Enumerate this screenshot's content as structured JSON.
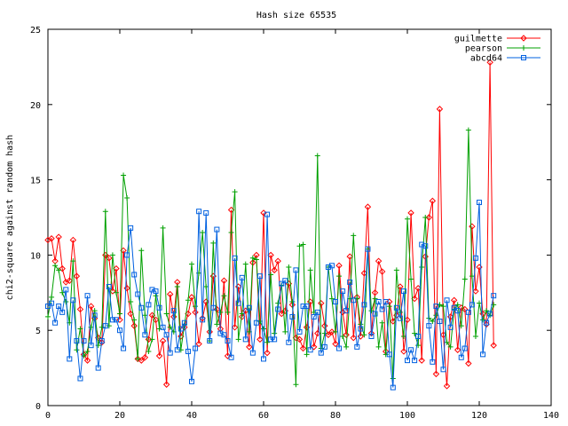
{
  "chart_data": {
    "type": "line",
    "title": "Hash size 65535",
    "xlabel": "",
    "ylabel": "chi2-square against random hash",
    "xlim": [
      0,
      140
    ],
    "ylim": [
      0,
      25
    ],
    "x_ticks": [
      0,
      20,
      40,
      60,
      80,
      100,
      120,
      140
    ],
    "y_ticks": [
      0,
      5,
      10,
      15,
      20,
      25
    ],
    "x_tick_labels": [
      "0",
      "20",
      "40",
      "60",
      "80",
      "100",
      "120",
      "140"
    ],
    "y_tick_labels": [
      "0",
      "5",
      "10",
      "15",
      "20",
      "25"
    ],
    "grid": false,
    "legend_position": "top-right",
    "series": [
      {
        "name": "guilmette",
        "color": "#ff0000",
        "marker": "diamond",
        "x": [
          0,
          1,
          2,
          3,
          4,
          5,
          6,
          7,
          8,
          9,
          10,
          11,
          12,
          13,
          14,
          15,
          16,
          17,
          18,
          19,
          20,
          21,
          22,
          23,
          24,
          25,
          26,
          27,
          28,
          29,
          30,
          31,
          32,
          33,
          34,
          35,
          36,
          37,
          38,
          39,
          40,
          41,
          42,
          43,
          44,
          45,
          46,
          47,
          48,
          49,
          50,
          51,
          52,
          53,
          54,
          55,
          56,
          57,
          58,
          59,
          60,
          61,
          62,
          63,
          64,
          65,
          66,
          67,
          68,
          69,
          70,
          71,
          72,
          73,
          74,
          75,
          76,
          77,
          78,
          79,
          80,
          81,
          82,
          83,
          84,
          85,
          86,
          87,
          88,
          89,
          90,
          91,
          92,
          93,
          94,
          95,
          96,
          97,
          98,
          99,
          100,
          101,
          102,
          103,
          104,
          105,
          106,
          107,
          108,
          109,
          110,
          111,
          112,
          113,
          114,
          115,
          116,
          117,
          118,
          119,
          120,
          121,
          122,
          123,
          124
        ],
        "values": [
          11.0,
          11.1,
          9.6,
          11.2,
          9.1,
          8.2,
          8.3,
          11.0,
          8.6,
          6.4,
          3.4,
          3.0,
          6.6,
          5.8,
          4.5,
          4.2,
          10.0,
          9.8,
          7.6,
          9.1,
          5.7,
          10.3,
          7.8,
          6.1,
          5.3,
          3.1,
          3.0,
          3.2,
          4.4,
          6.0,
          5.7,
          3.3,
          4.3,
          1.4,
          7.4,
          5.9,
          8.2,
          4.6,
          5.2,
          6.1,
          7.2,
          6.2,
          4.1,
          5.8,
          6.9,
          4.9,
          8.6,
          6.4,
          5.1,
          8.3,
          3.3,
          13.0,
          5.2,
          7.9,
          5.9,
          6.3,
          3.9,
          9.5,
          10.0,
          4.4,
          12.8,
          3.5,
          10.0,
          9.0,
          9.6,
          6.1,
          6.3,
          8.1,
          6.7,
          4.5,
          4.4,
          3.8,
          5.2,
          6.9,
          3.9,
          4.8,
          6.8,
          5.3,
          4.7,
          4.9,
          4.1,
          9.3,
          6.2,
          4.7,
          9.9,
          4.5,
          7.2,
          4.6,
          8.8,
          13.2,
          4.8,
          7.5,
          9.6,
          8.9,
          3.6,
          6.9,
          5.6,
          6.0,
          7.9,
          3.6,
          5.7,
          12.8,
          7.1,
          7.8,
          3.0,
          9.9,
          12.5,
          13.6,
          2.1,
          19.7,
          4.7,
          1.3,
          5.9,
          7.0,
          3.7,
          6.5,
          6.4,
          2.8,
          11.9,
          7.6,
          9.2,
          6.1,
          5.4,
          22.8,
          4.0
        ]
      },
      {
        "name": "pearson",
        "color": "#00a000",
        "marker": "plus",
        "x": [
          0,
          1,
          2,
          3,
          4,
          5,
          6,
          7,
          8,
          9,
          10,
          11,
          12,
          13,
          14,
          15,
          16,
          17,
          18,
          19,
          20,
          21,
          22,
          23,
          24,
          25,
          26,
          27,
          28,
          29,
          30,
          31,
          32,
          33,
          34,
          35,
          36,
          37,
          38,
          39,
          40,
          41,
          42,
          43,
          44,
          45,
          46,
          47,
          48,
          49,
          50,
          51,
          52,
          53,
          54,
          55,
          56,
          57,
          58,
          59,
          60,
          61,
          62,
          63,
          64,
          65,
          66,
          67,
          68,
          69,
          70,
          71,
          72,
          73,
          74,
          75,
          76,
          77,
          78,
          79,
          80,
          81,
          82,
          83,
          84,
          85,
          86,
          87,
          88,
          89,
          90,
          91,
          92,
          93,
          94,
          95,
          96,
          97,
          98,
          99,
          100,
          101,
          102,
          103,
          104,
          105,
          106,
          107,
          108,
          109,
          110,
          111,
          112,
          113,
          114,
          115,
          116,
          117,
          118,
          119,
          120,
          121,
          122,
          123,
          124
        ],
        "values": [
          5.9,
          7.2,
          9.3,
          9.0,
          7.5,
          6.9,
          5.5,
          9.6,
          3.7,
          5.1,
          3.3,
          3.6,
          5.2,
          6.3,
          4.0,
          5.2,
          12.9,
          5.3,
          10.0,
          7.5,
          6.1,
          15.3,
          13.8,
          6.9,
          5.7,
          3.1,
          10.3,
          6.0,
          3.6,
          4.4,
          7.3,
          5.1,
          11.8,
          6.1,
          5.2,
          4.9,
          7.9,
          3.7,
          5.4,
          7.0,
          9.4,
          6.6,
          8.8,
          11.5,
          7.9,
          4.3,
          10.8,
          5.4,
          6.2,
          7.3,
          6.2,
          11.5,
          14.2,
          4.4,
          6.1,
          9.4,
          4.9,
          9.8,
          9.7,
          5.6,
          5.1,
          4.2,
          8.7,
          4.8,
          6.8,
          8.0,
          4.9,
          9.2,
          6.9,
          1.4,
          10.6,
          10.7,
          3.4,
          9.0,
          6.2,
          16.6,
          3.8,
          4.8,
          9.2,
          7.1,
          4.9,
          8.6,
          4.6,
          3.9,
          7.1,
          11.3,
          7.1,
          5.4,
          4.7,
          10.4,
          6.3,
          7.1,
          3.9,
          5.5,
          3.4,
          6.6,
          1.8,
          9.0,
          6.2,
          4.6,
          12.4,
          8.4,
          4.8,
          4.0,
          9.2,
          12.5,
          5.8,
          5.6,
          6.0,
          6.7,
          6.6,
          4.2,
          3.9,
          6.4,
          6.7,
          5.3,
          8.4,
          18.3,
          8.6,
          4.6,
          6.8,
          5.7,
          6.3,
          6.0,
          6.7
        ]
      },
      {
        "name": "abcd64",
        "color": "#0060e0",
        "marker": "square",
        "x": [
          0,
          1,
          2,
          3,
          4,
          5,
          6,
          7,
          8,
          9,
          10,
          11,
          12,
          13,
          14,
          15,
          16,
          17,
          18,
          19,
          20,
          21,
          22,
          23,
          24,
          25,
          26,
          27,
          28,
          29,
          30,
          31,
          32,
          33,
          34,
          35,
          36,
          37,
          38,
          39,
          40,
          41,
          42,
          43,
          44,
          45,
          46,
          47,
          48,
          49,
          50,
          51,
          52,
          53,
          54,
          55,
          56,
          57,
          58,
          59,
          60,
          61,
          62,
          63,
          64,
          65,
          66,
          67,
          68,
          69,
          70,
          71,
          72,
          73,
          74,
          75,
          76,
          77,
          78,
          79,
          80,
          81,
          82,
          83,
          84,
          85,
          86,
          87,
          88,
          89,
          90,
          91,
          92,
          93,
          94,
          95,
          96,
          97,
          98,
          99,
          100,
          101,
          102,
          103,
          104,
          105,
          106,
          107,
          108,
          109,
          110,
          111,
          112,
          113,
          114,
          115,
          116,
          117,
          118,
          119,
          120,
          121,
          122,
          123,
          124
        ],
        "values": [
          6.6,
          6.8,
          5.5,
          6.6,
          6.2,
          7.7,
          3.1,
          7.0,
          4.3,
          1.8,
          4.3,
          7.3,
          4.0,
          6.0,
          2.5,
          4.3,
          5.3,
          7.9,
          5.7,
          5.7,
          5.0,
          3.8,
          10.0,
          11.8,
          8.7,
          7.4,
          6.5,
          4.7,
          6.7,
          7.7,
          7.6,
          6.5,
          5.2,
          4.7,
          3.5,
          6.3,
          3.7,
          5.1,
          5.5,
          3.6,
          1.6,
          3.8,
          12.9,
          5.7,
          12.8,
          4.3,
          6.5,
          11.7,
          4.8,
          4.7,
          4.3,
          3.2,
          9.8,
          6.8,
          8.5,
          4.4,
          6.5,
          3.5,
          5.5,
          8.6,
          3.1,
          12.7,
          4.4,
          4.4,
          6.4,
          8.1,
          8.3,
          4.2,
          5.9,
          9.0,
          4.9,
          6.6,
          6.6,
          3.7,
          5.9,
          6.2,
          3.5,
          3.9,
          9.2,
          9.3,
          6.9,
          3.8,
          7.6,
          6.3,
          8.2,
          7.0,
          3.9,
          5.1,
          6.7,
          10.4,
          4.6,
          6.1,
          6.9,
          6.4,
          6.9,
          3.4,
          1.2,
          6.5,
          5.8,
          7.6,
          3.0,
          3.7,
          3.0,
          4.6,
          10.7,
          10.6,
          5.3,
          2.9,
          6.6,
          5.6,
          2.4,
          7.0,
          5.2,
          6.5,
          6.3,
          3.2,
          3.8,
          6.2,
          6.7,
          9.8,
          13.5,
          3.4,
          5.5,
          6.1,
          7.3
        ]
      }
    ]
  }
}
